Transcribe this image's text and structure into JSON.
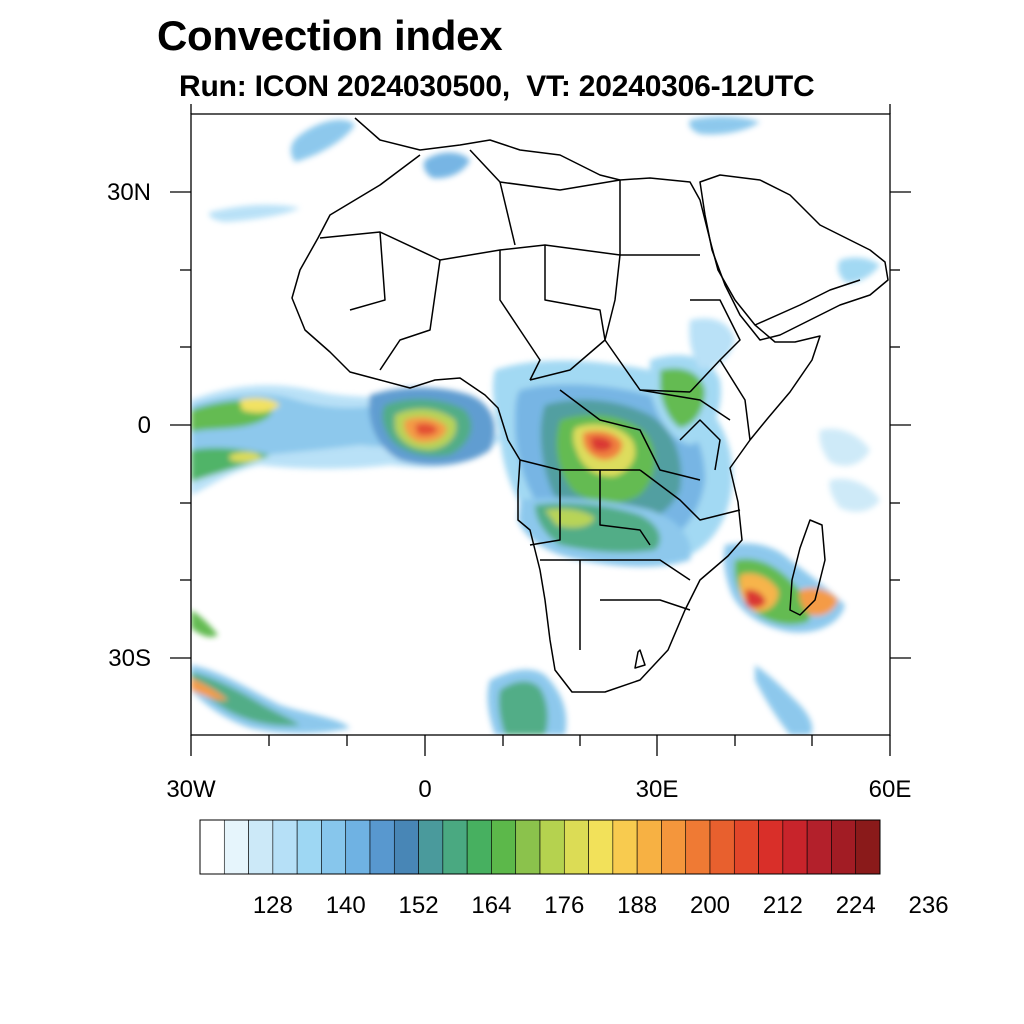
{
  "title": "Convection index",
  "subtitle": "Run: ICON 2024030500,  VT: 20240306-12UTC",
  "axes": {
    "lat_labels": [
      "30N",
      "0",
      "30S"
    ],
    "lon_labels": [
      "30W",
      "0",
      "30E",
      "60E"
    ],
    "lon_range": [
      -30,
      60
    ],
    "lat_range": [
      -40,
      40
    ]
  },
  "colorbar": {
    "labels": [
      "128",
      "140",
      "152",
      "164",
      "176",
      "188",
      "200",
      "212",
      "224",
      "236"
    ],
    "colors": [
      "#ffffff",
      "#e6f5fc",
      "#cce9f8",
      "#b6e0f7",
      "#9ed7f3",
      "#87c6ec",
      "#6fb2e3",
      "#5898cf",
      "#4886b6",
      "#4a9a9c",
      "#4aa981",
      "#47b060",
      "#5cb84a",
      "#8bc24c",
      "#b5d24f",
      "#dcdc55",
      "#f2e15a",
      "#f8cb4f",
      "#f7b143",
      "#f4963c",
      "#ef7a34",
      "#e8602e",
      "#e2462a",
      "#d92f29",
      "#c8242b",
      "#b3202b",
      "#a21c24",
      "#8a1a1a"
    ]
  },
  "map_features": {
    "coastline": "Africa and Arabian Peninsula outlines with country borders",
    "field": "convection index shading"
  }
}
